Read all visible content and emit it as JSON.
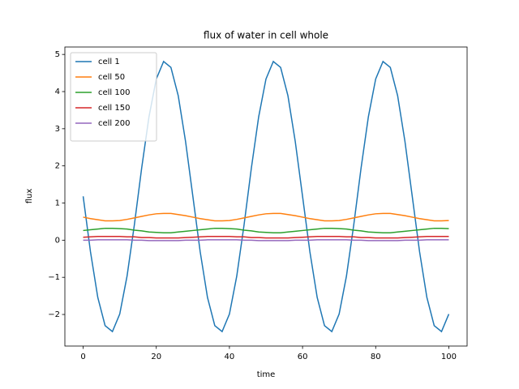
{
  "chart_data": {
    "type": "line",
    "title": "flux of water in cell whole",
    "xlabel": "time",
    "ylabel": "flux",
    "x": [
      0,
      2,
      4,
      6,
      8,
      10,
      12,
      14,
      16,
      18,
      20,
      22,
      24,
      26,
      28,
      30,
      32,
      34,
      36,
      38,
      40,
      42,
      44,
      46,
      48,
      50,
      52,
      54,
      56,
      58,
      60,
      62,
      64,
      66,
      68,
      70,
      72,
      74,
      76,
      78,
      80,
      82,
      84,
      86,
      88,
      90,
      92,
      94,
      96,
      98,
      100
    ],
    "series": [
      {
        "name": "cell 1",
        "color": "#1f77b4",
        "values": [
          1.18,
          -0.31,
          -1.54,
          -2.3,
          -2.46,
          -1.99,
          -0.97,
          0.41,
          1.94,
          3.32,
          4.34,
          4.81,
          4.65,
          3.89,
          2.66,
          1.18,
          -0.31,
          -1.54,
          -2.3,
          -2.46,
          -1.99,
          -0.97,
          0.41,
          1.94,
          3.32,
          4.34,
          4.81,
          4.65,
          3.89,
          2.66,
          1.18,
          -0.31,
          -1.54,
          -2.3,
          -2.46,
          -1.99,
          -0.97,
          0.41,
          1.94,
          3.32,
          4.34,
          4.81,
          4.65,
          3.89,
          2.66,
          1.18,
          -0.31,
          -1.54,
          -2.3,
          -2.46,
          -1.99
        ]
      },
      {
        "name": "cell 50",
        "color": "#ff7f0e",
        "values": [
          0.62,
          0.58,
          0.55,
          0.52,
          0.52,
          0.53,
          0.56,
          0.6,
          0.64,
          0.68,
          0.71,
          0.72,
          0.72,
          0.69,
          0.66,
          0.62,
          0.58,
          0.55,
          0.52,
          0.52,
          0.53,
          0.56,
          0.6,
          0.64,
          0.68,
          0.71,
          0.72,
          0.72,
          0.69,
          0.66,
          0.62,
          0.58,
          0.55,
          0.52,
          0.52,
          0.53,
          0.56,
          0.6,
          0.64,
          0.68,
          0.71,
          0.72,
          0.72,
          0.69,
          0.66,
          0.62,
          0.58,
          0.55,
          0.52,
          0.52,
          0.53
        ]
      },
      {
        "name": "cell 100",
        "color": "#2ca02c",
        "values": [
          0.26,
          0.28,
          0.3,
          0.32,
          0.32,
          0.31,
          0.3,
          0.27,
          0.25,
          0.22,
          0.21,
          0.2,
          0.2,
          0.22,
          0.24,
          0.26,
          0.28,
          0.3,
          0.32,
          0.32,
          0.31,
          0.3,
          0.27,
          0.25,
          0.22,
          0.21,
          0.2,
          0.2,
          0.22,
          0.24,
          0.26,
          0.28,
          0.3,
          0.32,
          0.32,
          0.31,
          0.3,
          0.27,
          0.25,
          0.22,
          0.21,
          0.2,
          0.2,
          0.22,
          0.24,
          0.26,
          0.28,
          0.3,
          0.32,
          0.32,
          0.31
        ]
      },
      {
        "name": "cell 150",
        "color": "#d62728",
        "values": [
          0.08,
          0.09,
          0.1,
          0.1,
          0.1,
          0.1,
          0.09,
          0.09,
          0.07,
          0.07,
          0.06,
          0.06,
          0.06,
          0.06,
          0.07,
          0.08,
          0.09,
          0.1,
          0.1,
          0.1,
          0.1,
          0.09,
          0.09,
          0.07,
          0.07,
          0.06,
          0.06,
          0.06,
          0.06,
          0.07,
          0.08,
          0.09,
          0.1,
          0.1,
          0.1,
          0.1,
          0.09,
          0.09,
          0.07,
          0.07,
          0.06,
          0.06,
          0.06,
          0.06,
          0.07,
          0.08,
          0.09,
          0.1,
          0.1,
          0.1,
          0.1
        ]
      },
      {
        "name": "cell 200",
        "color": "#9467bd",
        "values": [
          0,
          0,
          0.01,
          0.01,
          0.01,
          0.01,
          0.01,
          0,
          0,
          -0.01,
          -0.01,
          -0.01,
          -0.01,
          -0.01,
          0,
          0,
          0,
          0.01,
          0.01,
          0.01,
          0.01,
          0.01,
          0,
          0,
          -0.01,
          -0.01,
          -0.01,
          -0.01,
          -0.01,
          0,
          0,
          0,
          0.01,
          0.01,
          0.01,
          0.01,
          0.01,
          0,
          0,
          -0.01,
          -0.01,
          -0.01,
          -0.01,
          -0.01,
          0,
          0,
          0,
          0.01,
          0.01,
          0.01,
          0.01
        ]
      }
    ],
    "xlim": [
      -5,
      105
    ],
    "xticks": [
      0,
      20,
      40,
      60,
      80,
      100
    ],
    "ylim": [
      -2.85,
      5.2
    ],
    "yticks": [
      {
        "value": -2,
        "label": "−2"
      },
      {
        "value": -1,
        "label": "−1"
      },
      0,
      1,
      2,
      3,
      4,
      5
    ],
    "legend": "upper left",
    "grid": false
  }
}
